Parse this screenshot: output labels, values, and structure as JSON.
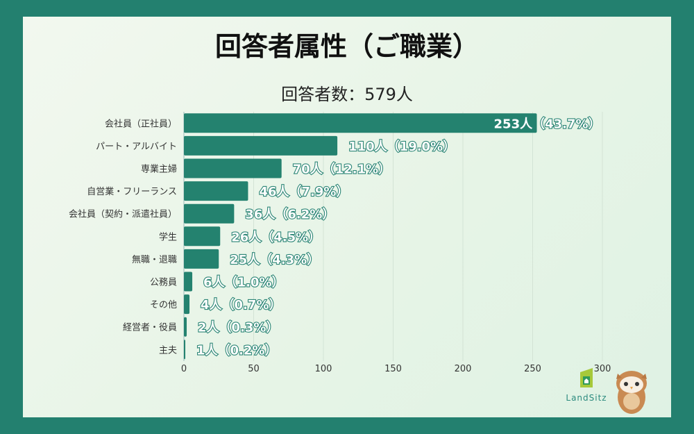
{
  "title": "回答者属性（ご職業）",
  "subtitle": "回答者数：579人",
  "logo": {
    "text": "LandSitz"
  },
  "colors": {
    "bar": "#24826f",
    "background": "#23806f",
    "panel": "#eaf5e8",
    "grid": "#d3e3d5"
  },
  "chart_data": {
    "type": "bar",
    "orientation": "horizontal",
    "categories": [
      "会社員（正社員）",
      "パート・アルバイト",
      "専業主婦",
      "自営業・フリーランス",
      "会社員（契約・派遣社員）",
      "学生",
      "無職・退職",
      "公務員",
      "その他",
      "経営者・役員",
      "主夫"
    ],
    "values": [
      253,
      110,
      70,
      46,
      36,
      26,
      25,
      6,
      4,
      2,
      1
    ],
    "data_labels": [
      "253人（43.7%）",
      "110人（19.0%）",
      "70人（12.1%）",
      "46人（7.9%）",
      "36人（6.2%）",
      "26人（4.5%）",
      "25人（4.3%）",
      "6人（1.0%）",
      "4人（0.7%）",
      "2人（0.3%）",
      "1人（0.2%）"
    ],
    "xlim": [
      0,
      300
    ],
    "xticks": [
      "0",
      "50",
      "100",
      "150",
      "200",
      "250",
      "300"
    ],
    "grid": true,
    "legend": "none"
  }
}
